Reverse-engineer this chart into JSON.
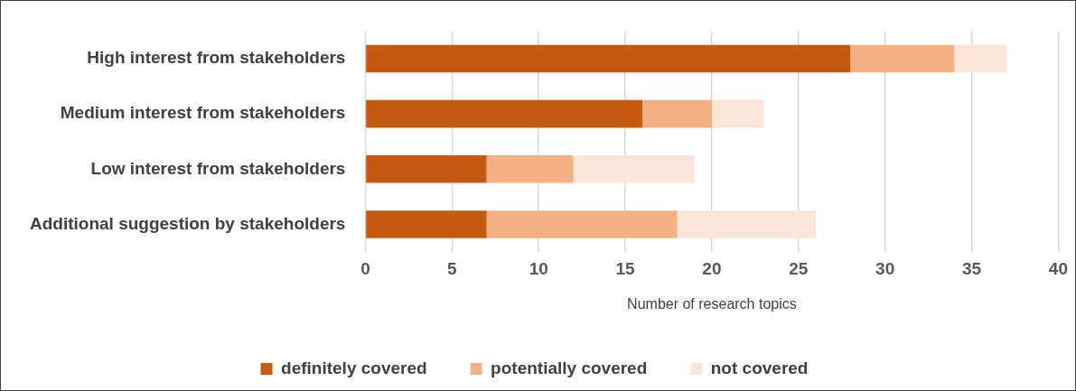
{
  "chart_data": {
    "type": "bar",
    "orientation": "horizontal",
    "stacked": true,
    "categories": [
      "High interest from stakeholders",
      "Medium interest from stakeholders",
      "Low interest from stakeholders",
      "Additional suggestion by stakeholders"
    ],
    "series": [
      {
        "name": "definitely covered",
        "color": "#c55a11",
        "values": [
          28,
          16,
          7,
          7
        ]
      },
      {
        "name": "potentially covered",
        "color": "#f4b183",
        "values": [
          6,
          4,
          5,
          11
        ]
      },
      {
        "name": "not covered",
        "color": "#fbe5d6",
        "values": [
          3,
          3,
          7,
          8
        ]
      }
    ],
    "xlabel": "Number of research topics",
    "xlim": [
      0,
      40
    ],
    "xticks": [
      0,
      5,
      10,
      15,
      20,
      25,
      30,
      35,
      40
    ],
    "grid": "x",
    "legend": "bottom"
  }
}
